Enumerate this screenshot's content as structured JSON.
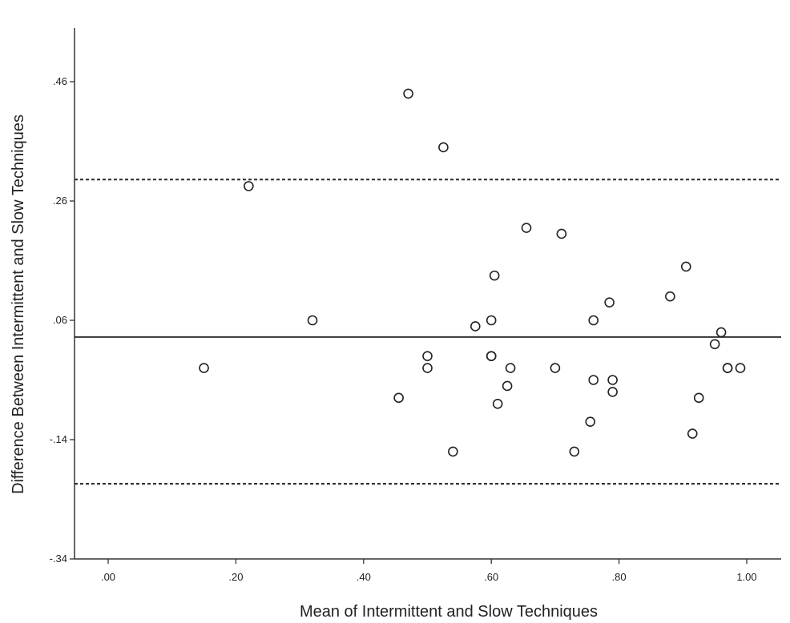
{
  "chart_data": {
    "type": "scatter",
    "title": "",
    "xlabel": "Mean of Intermittent and Slow Techniques",
    "ylabel": "Difference Between Intermittent and Slow Techniques",
    "xlim": [
      -0.05,
      1.05
    ],
    "ylim": [
      -0.34,
      0.55
    ],
    "x_ticks": [
      {
        "value": 0.0,
        "label": ".00"
      },
      {
        "value": 0.2,
        "label": ".20"
      },
      {
        "value": 0.4,
        "label": ".40"
      },
      {
        "value": 0.6,
        "label": ".60"
      },
      {
        "value": 0.8,
        "label": ".80"
      },
      {
        "value": 1.0,
        "label": "1.00"
      }
    ],
    "y_ticks": [
      {
        "value": -0.34,
        "label": "-.34"
      },
      {
        "value": -0.14,
        "label": "-.14"
      },
      {
        "value": 0.06,
        "label": ".06"
      },
      {
        "value": 0.26,
        "label": ".26"
      },
      {
        "value": 0.46,
        "label": ".46"
      }
    ],
    "reference_lines": [
      {
        "name": "mean-difference",
        "y": 0.032,
        "style": "solid"
      },
      {
        "name": "upper-limit",
        "y": 0.296,
        "style": "dashed"
      },
      {
        "name": "lower-limit",
        "y": -0.214,
        "style": "dashed"
      }
    ],
    "points": [
      {
        "x": 0.15,
        "y": -0.02
      },
      {
        "x": 0.22,
        "y": 0.285
      },
      {
        "x": 0.32,
        "y": 0.06
      },
      {
        "x": 0.455,
        "y": -0.07
      },
      {
        "x": 0.47,
        "y": 0.44
      },
      {
        "x": 0.5,
        "y": 0.0
      },
      {
        "x": 0.5,
        "y": -0.02
      },
      {
        "x": 0.525,
        "y": 0.35
      },
      {
        "x": 0.54,
        "y": -0.16
      },
      {
        "x": 0.575,
        "y": 0.05
      },
      {
        "x": 0.6,
        "y": 0.06
      },
      {
        "x": 0.6,
        "y": 0.0
      },
      {
        "x": 0.6,
        "y": 0.0
      },
      {
        "x": 0.605,
        "y": 0.135
      },
      {
        "x": 0.61,
        "y": -0.08
      },
      {
        "x": 0.625,
        "y": -0.05
      },
      {
        "x": 0.63,
        "y": -0.02
      },
      {
        "x": 0.655,
        "y": 0.215
      },
      {
        "x": 0.7,
        "y": -0.02
      },
      {
        "x": 0.71,
        "y": 0.205
      },
      {
        "x": 0.73,
        "y": -0.16
      },
      {
        "x": 0.755,
        "y": -0.11
      },
      {
        "x": 0.76,
        "y": 0.06
      },
      {
        "x": 0.76,
        "y": -0.04
      },
      {
        "x": 0.785,
        "y": 0.09
      },
      {
        "x": 0.79,
        "y": -0.04
      },
      {
        "x": 0.79,
        "y": -0.06
      },
      {
        "x": 0.88,
        "y": 0.1
      },
      {
        "x": 0.905,
        "y": 0.15
      },
      {
        "x": 0.915,
        "y": -0.13
      },
      {
        "x": 0.925,
        "y": -0.07
      },
      {
        "x": 0.95,
        "y": 0.02
      },
      {
        "x": 0.96,
        "y": 0.04
      },
      {
        "x": 0.97,
        "y": -0.02
      },
      {
        "x": 0.97,
        "y": -0.02
      },
      {
        "x": 0.99,
        "y": -0.02
      }
    ],
    "grid": false,
    "legend": "none"
  }
}
